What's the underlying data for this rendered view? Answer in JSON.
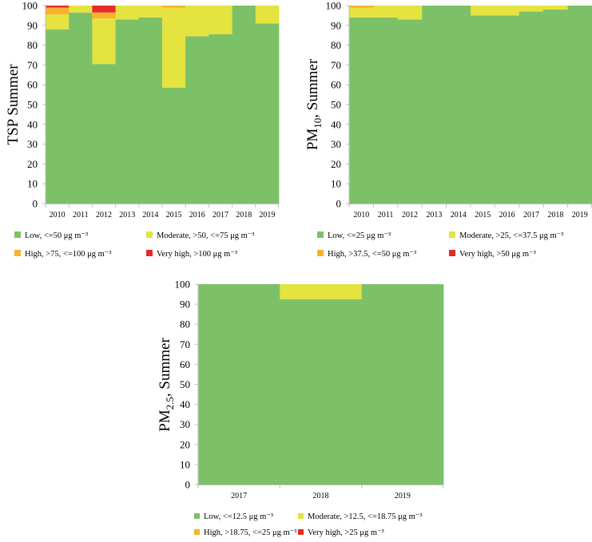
{
  "colors": {
    "low": "#7cc168",
    "moderate": "#e4e33f",
    "high": "#f6b32b",
    "very_high": "#e8282a",
    "axis": "#bfbfbf"
  },
  "chart_data": [
    {
      "type": "bar",
      "stacked": true,
      "title": "TSP Summer",
      "ylabel": "TSP Summer",
      "ylabel_parts": [
        "TSP Summer"
      ],
      "ylim": [
        0,
        100
      ],
      "yticks": [
        0,
        10,
        20,
        30,
        40,
        50,
        60,
        70,
        80,
        90,
        100
      ],
      "categories": [
        "2010",
        "2011",
        "2012",
        "2013",
        "2014",
        "2015",
        "2016",
        "2017",
        "2018",
        "2019"
      ],
      "series": [
        {
          "name": "Low, <=50 μg m⁻³",
          "key": "low",
          "values": [
            88,
            96.5,
            70.5,
            93,
            94,
            58.5,
            84.5,
            85.5,
            100,
            91
          ]
        },
        {
          "name": "Moderate, >50, <=75 μg m⁻³",
          "key": "moderate",
          "values": [
            7.5,
            3.5,
            23,
            7,
            6,
            40.5,
            15.5,
            14.5,
            0,
            9
          ]
        },
        {
          "name": "High, >75, <=100 μg m⁻³",
          "key": "high",
          "values": [
            3.5,
            0,
            3,
            0,
            0,
            1,
            0,
            0,
            0,
            0
          ]
        },
        {
          "name": "Very high, >100 μg m⁻³",
          "key": "very_high",
          "values": [
            1,
            0,
            3.5,
            0,
            0,
            0,
            0,
            0,
            0,
            0
          ]
        }
      ]
    },
    {
      "type": "bar",
      "stacked": true,
      "title": "PM10, Summer",
      "ylabel": "PM10, Summer",
      "ylabel_parts": [
        "PM",
        "10",
        ", Summer"
      ],
      "ylim": [
        0,
        100
      ],
      "yticks": [
        0,
        10,
        20,
        30,
        40,
        50,
        60,
        70,
        80,
        90,
        100
      ],
      "categories": [
        "2010",
        "2011",
        "2012",
        "2013",
        "2014",
        "2015",
        "2016",
        "2017",
        "2018",
        "2019"
      ],
      "series": [
        {
          "name": "Low, <=25 μg m⁻³",
          "key": "low",
          "values": [
            94,
            94,
            93,
            100,
            100,
            95,
            95,
            97,
            98,
            100
          ]
        },
        {
          "name": "Moderate, >25, <=37.5 μg m⁻³",
          "key": "moderate",
          "values": [
            5,
            6,
            7,
            0,
            0,
            5,
            5,
            3,
            2,
            0
          ]
        },
        {
          "name": "High, >37.5, <=50 μg m⁻³",
          "key": "high",
          "values": [
            1,
            0,
            0,
            0,
            0,
            0,
            0,
            0,
            0,
            0
          ]
        },
        {
          "name": "Very high, >50 μg m⁻³",
          "key": "very_high",
          "values": [
            0,
            0,
            0,
            0,
            0,
            0,
            0,
            0,
            0,
            0
          ]
        }
      ]
    },
    {
      "type": "bar",
      "stacked": true,
      "title": "PM2.5, Summer",
      "ylabel": "PM2.5, Summer",
      "ylabel_parts": [
        "PM",
        "2.5",
        ", Summer"
      ],
      "ylim": [
        0,
        100
      ],
      "yticks": [
        0,
        10,
        20,
        30,
        40,
        50,
        60,
        70,
        80,
        90,
        100
      ],
      "categories": [
        "2017",
        "2018",
        "2019"
      ],
      "series": [
        {
          "name": "Low, <=12.5 μg m⁻³",
          "key": "low",
          "values": [
            100,
            92.5,
            100
          ]
        },
        {
          "name": "Moderate, >12.5, <=18.75 μg m⁻³",
          "key": "moderate",
          "values": [
            0,
            7.5,
            0
          ]
        },
        {
          "name": "High, >18.75, <=25 μg m⁻³",
          "key": "high",
          "values": [
            0,
            0,
            0
          ]
        },
        {
          "name": "Very high, >25 μg m⁻³",
          "key": "very_high",
          "values": [
            0,
            0,
            0
          ]
        }
      ]
    }
  ]
}
